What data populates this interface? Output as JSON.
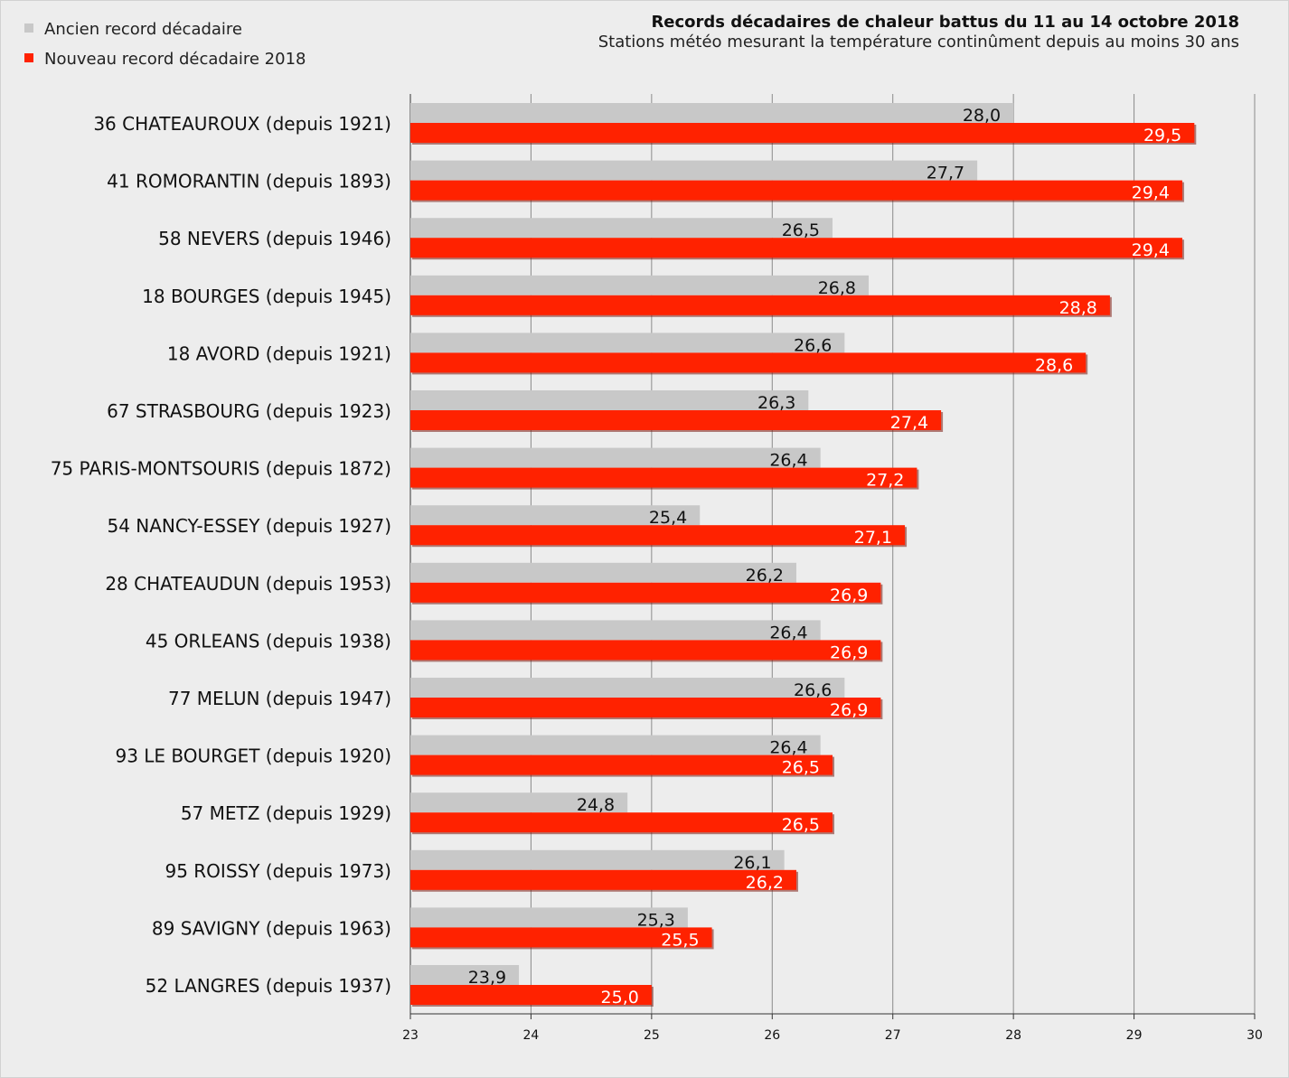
{
  "legend": {
    "old_label": "Ancien record décadaire",
    "new_label": "Nouveau record décadaire 2018",
    "old_color": "#c8c8c8",
    "new_color": "#ff2200"
  },
  "title": "Records décadaires de chaleur battus du 11 au 14 octobre 2018",
  "subtitle": "Stations météo mesurant la température continûment depuis au moins 30 ans",
  "chart_data": {
    "type": "bar",
    "orientation": "horizontal",
    "title": "Records décadaires de chaleur battus du 11 au 14 octobre 2018",
    "subtitle": "Stations météo mesurant la température continûment depuis au moins 30 ans",
    "xlim": [
      23,
      30
    ],
    "x_ticks": [
      "23",
      "24",
      "25",
      "26",
      "27",
      "28",
      "29",
      "30"
    ],
    "grid": "vertical",
    "legend_position": "top-left",
    "categories": [
      "36 CHATEAUROUX (depuis 1921)",
      "41 ROMORANTIN (depuis 1893)",
      "58 NEVERS (depuis 1946)",
      "18 BOURGES (depuis 1945)",
      "18 AVORD (depuis 1921)",
      "67 STRASBOURG (depuis 1923)",
      "75 PARIS-MONTSOURIS (depuis 1872)",
      "54 NANCY-ESSEY (depuis 1927)",
      "28 CHATEAUDUN (depuis 1953)",
      "45 ORLEANS (depuis 1938)",
      "77 MELUN (depuis 1947)",
      "93 LE BOURGET (depuis 1920)",
      "57 METZ (depuis 1929)",
      "95 ROISSY (depuis 1973)",
      "89 SAVIGNY (depuis 1963)",
      "52 LANGRES (depuis 1937)"
    ],
    "series": [
      {
        "name": "Ancien record décadaire",
        "color": "#c8c8c8",
        "values": [
          28.0,
          27.7,
          26.5,
          26.8,
          26.6,
          26.3,
          26.4,
          25.4,
          26.2,
          26.4,
          26.6,
          26.4,
          24.8,
          26.1,
          25.3,
          23.9
        ],
        "labels": [
          "28,0",
          "27,7",
          "26,5",
          "26,8",
          "26,6",
          "26,3",
          "26,4",
          "25,4",
          "26,2",
          "26,4",
          "26,6",
          "26,4",
          "24,8",
          "26,1",
          "25,3",
          "23,9"
        ]
      },
      {
        "name": "Nouveau record décadaire 2018",
        "color": "#ff2200",
        "values": [
          29.5,
          29.4,
          29.4,
          28.8,
          28.6,
          27.4,
          27.2,
          27.1,
          26.9,
          26.9,
          26.9,
          26.5,
          26.5,
          26.2,
          25.5,
          25.0
        ],
        "labels": [
          "29,5",
          "29,4",
          "29,4",
          "28,8",
          "28,6",
          "27,4",
          "27,2",
          "27,1",
          "26,9",
          "26,9",
          "26,9",
          "26,5",
          "26,5",
          "26,2",
          "25,5",
          "25,0"
        ]
      }
    ]
  }
}
